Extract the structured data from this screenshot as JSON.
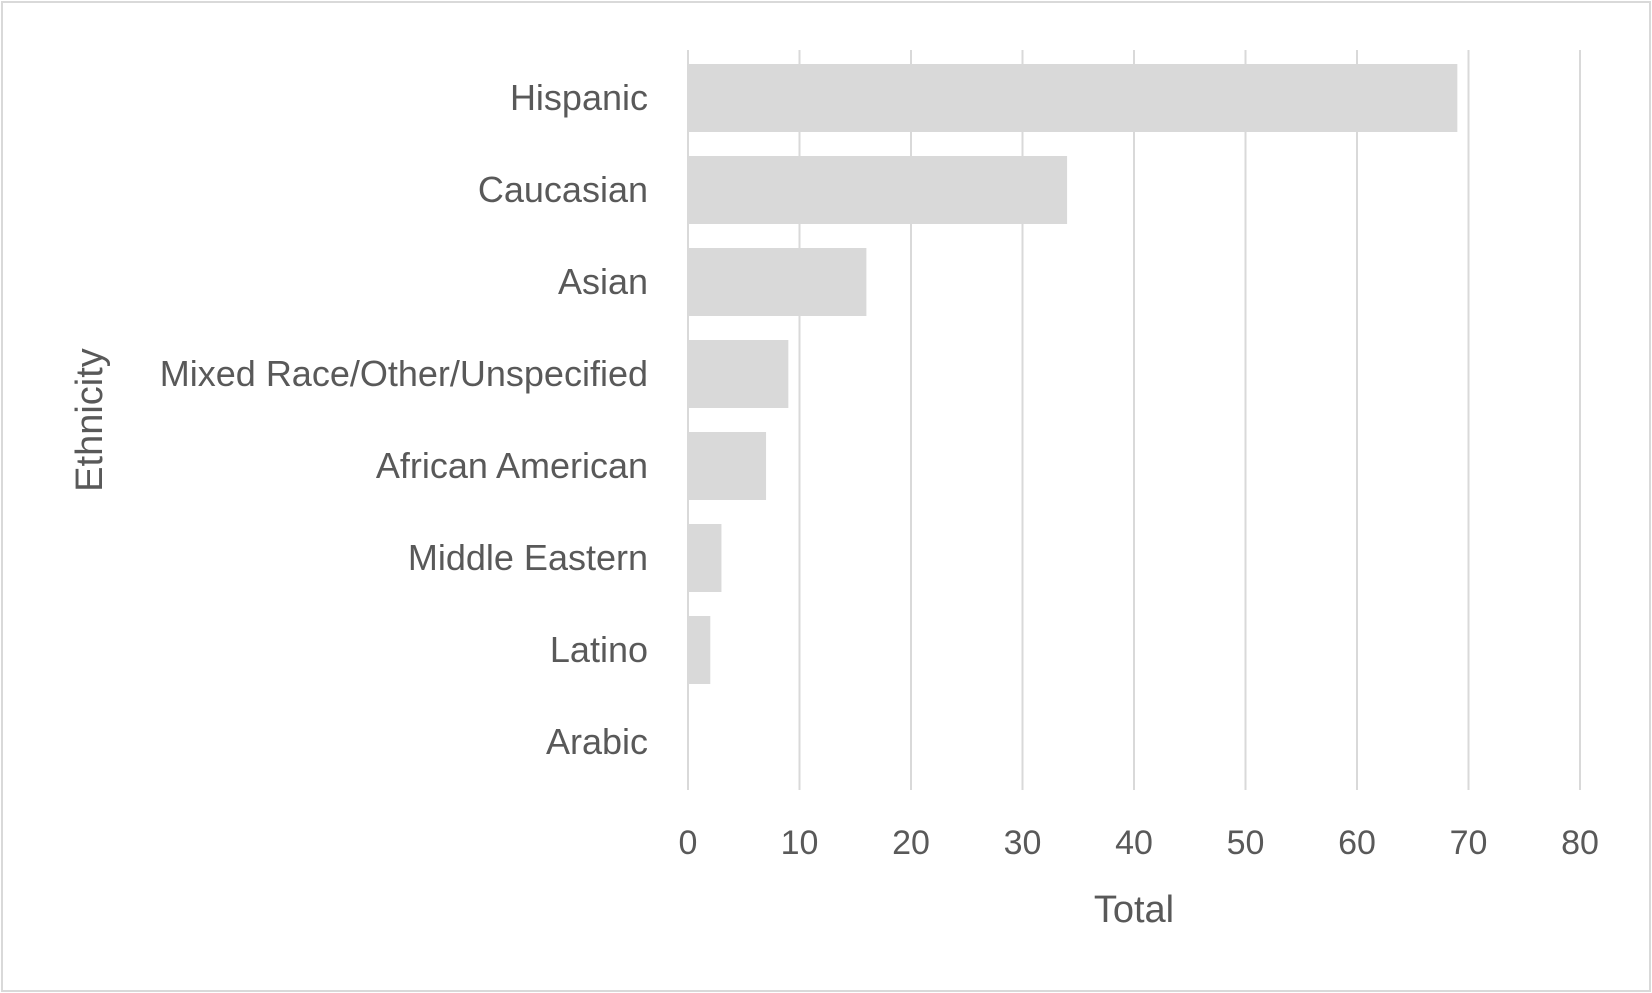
{
  "chart_data": {
    "type": "bar",
    "orientation": "horizontal",
    "categories": [
      "Hispanic",
      "Caucasian",
      "Asian",
      "Mixed Race/Other/Unspecified",
      "African American",
      "Middle Eastern",
      "Latino",
      "Arabic"
    ],
    "values": [
      69,
      34,
      16,
      9,
      7,
      3,
      2,
      0
    ],
    "xlabel": "Total",
    "ylabel": "Ethnicity",
    "xlim": [
      0,
      80
    ],
    "xticks": [
      "0",
      "10",
      "20",
      "30",
      "40",
      "50",
      "60",
      "70",
      "80"
    ],
    "grid": true,
    "legend": "none",
    "colors": {
      "bar": "#d9d9d9",
      "grid": "#d9d9d9",
      "text": "#595959",
      "border": "#d9d9d9"
    }
  }
}
